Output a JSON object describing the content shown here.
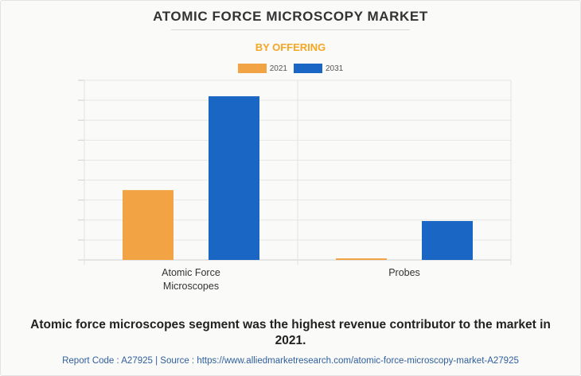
{
  "header": {
    "title": "ATOMIC FORCE MICROSCOPY MARKET",
    "subtitle": "BY OFFERING"
  },
  "colors": {
    "accent": "#f5a623",
    "series_2021": "#f2a444",
    "series_2031": "#1a66c4"
  },
  "chart_data": {
    "type": "bar",
    "categories": [
      [
        "Atomic Force",
        "Microscopes"
      ],
      [
        "Probes"
      ]
    ],
    "series": [
      {
        "name": "2021",
        "values": [
          35,
          0.8
        ]
      },
      {
        "name": "2031",
        "values": [
          82,
          19.5
        ]
      }
    ],
    "ylim": [
      0,
      90
    ],
    "grid": true,
    "legend": "top-center"
  },
  "summary": "Atomic force microscopes segment was the highest revenue contributor to the market in 2021.",
  "footer": "Report Code : A27925  |  Source : https://www.alliedmarketresearch.com/atomic-force-microscopy-market-A27925"
}
